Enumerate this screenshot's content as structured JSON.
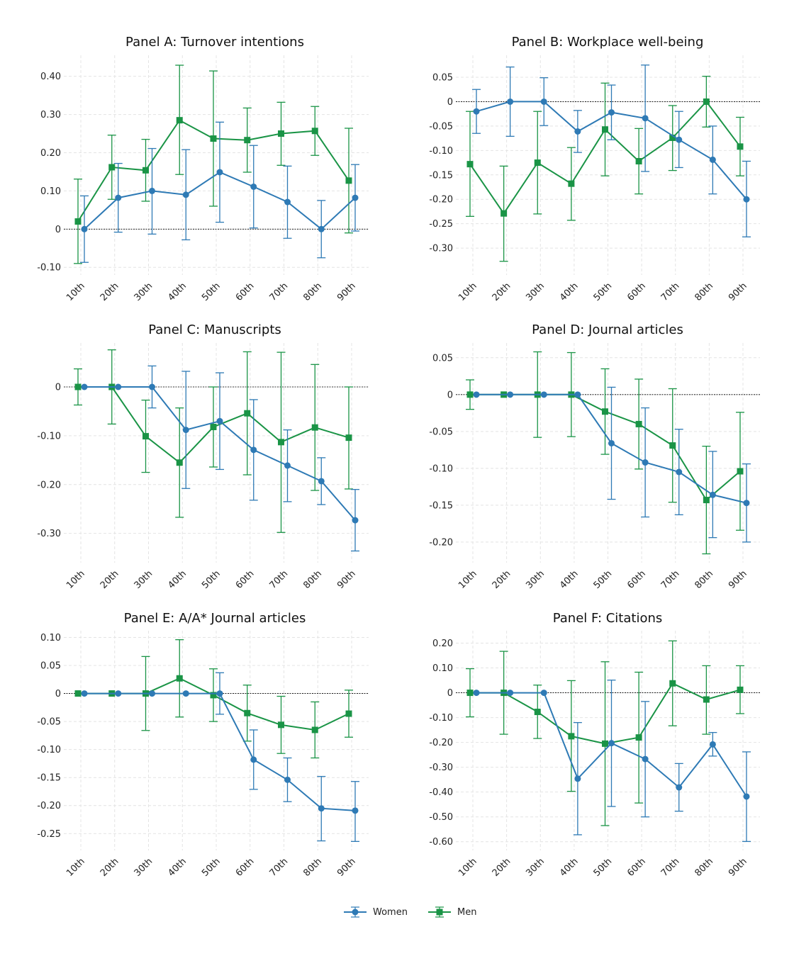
{
  "chart_data": [
    {
      "type": "line",
      "title": "Panel A: Turnover intentions",
      "categories": [
        "10th",
        "20th",
        "30th",
        "40th",
        "50th",
        "60th",
        "70th",
        "80th",
        "90th"
      ],
      "ylim": [
        -0.12,
        0.455
      ],
      "yticks": [
        -0.1,
        0.0,
        0.1,
        0.2,
        0.3,
        0.4
      ],
      "ytick_labels": [
        "-0.10",
        "0",
        "0.10",
        "0.20",
        "0.30",
        "0.40"
      ],
      "grid": true,
      "series": [
        {
          "name": "Women",
          "values": [
            0.0,
            0.082,
            0.1,
            0.09,
            0.149,
            0.111,
            0.071,
            0.0,
            0.082
          ],
          "err_low": [
            -0.087,
            -0.008,
            -0.013,
            -0.028,
            0.018,
            0.003,
            -0.024,
            -0.075,
            -0.005
          ],
          "err_high": [
            0.087,
            0.172,
            0.211,
            0.208,
            0.28,
            0.219,
            0.165,
            0.075,
            0.169
          ]
        },
        {
          "name": "Men",
          "values": [
            0.02,
            0.162,
            0.154,
            0.285,
            0.237,
            0.233,
            0.25,
            0.257,
            0.127
          ],
          "err_low": [
            -0.09,
            0.078,
            0.073,
            0.143,
            0.06,
            0.149,
            0.167,
            0.193,
            -0.01
          ],
          "err_high": [
            0.131,
            0.246,
            0.235,
            0.429,
            0.414,
            0.317,
            0.332,
            0.321,
            0.264
          ]
        }
      ]
    },
    {
      "type": "line",
      "title": "Panel B: Workplace well-being",
      "categories": [
        "10th",
        "20th",
        "30th",
        "40th",
        "50th",
        "60th",
        "70th",
        "80th",
        "90th"
      ],
      "ylim": [
        -0.355,
        0.095
      ],
      "yticks": [
        -0.3,
        -0.25,
        -0.2,
        -0.15,
        -0.1,
        -0.05,
        0.0,
        0.05
      ],
      "ytick_labels": [
        "-0.30",
        "-0.25",
        "-0.20",
        "-0.15",
        "-0.10",
        "-0.05",
        "0",
        "0.05"
      ],
      "grid": true,
      "series": [
        {
          "name": "Women",
          "values": [
            -0.02,
            0.0,
            0.0,
            -0.061,
            -0.022,
            -0.034,
            -0.078,
            -0.119,
            -0.2
          ],
          "err_low": [
            -0.065,
            -0.071,
            -0.049,
            -0.104,
            -0.078,
            -0.143,
            -0.135,
            -0.189,
            -0.277
          ],
          "err_high": [
            0.025,
            0.071,
            0.049,
            -0.018,
            0.034,
            0.075,
            -0.02,
            -0.05,
            -0.122
          ]
        },
        {
          "name": "Men",
          "values": [
            -0.128,
            -0.229,
            -0.125,
            -0.168,
            -0.057,
            -0.122,
            -0.074,
            0.0,
            -0.092
          ],
          "err_low": [
            -0.235,
            -0.327,
            -0.23,
            -0.243,
            -0.152,
            -0.189,
            -0.141,
            -0.052,
            -0.152
          ],
          "err_high": [
            -0.02,
            -0.132,
            -0.02,
            -0.094,
            0.038,
            -0.055,
            -0.008,
            0.052,
            -0.032
          ]
        }
      ]
    },
    {
      "type": "line",
      "title": "Panel C: Manuscripts",
      "categories": [
        "10th",
        "20th",
        "30th",
        "40th",
        "50th",
        "60th",
        "70th",
        "80th",
        "90th"
      ],
      "ylim": [
        -0.36,
        0.09
      ],
      "yticks": [
        -0.3,
        -0.2,
        -0.1,
        0.0
      ],
      "ytick_labels": [
        "-0.30",
        "-0.20",
        "-0.10",
        "0"
      ],
      "grid": true,
      "series": [
        {
          "name": "Women",
          "values": [
            0.0,
            0.0,
            0.0,
            -0.088,
            -0.07,
            -0.129,
            -0.161,
            -0.193,
            -0.273
          ],
          "err_low": [
            0.0,
            0.0,
            -0.043,
            -0.208,
            -0.169,
            -0.232,
            -0.235,
            -0.241,
            -0.336
          ],
          "err_high": [
            0.0,
            0.0,
            0.043,
            0.032,
            0.029,
            -0.026,
            -0.088,
            -0.145,
            -0.21
          ]
        },
        {
          "name": "Men",
          "values": [
            0.0,
            0.0,
            -0.101,
            -0.155,
            -0.082,
            -0.054,
            -0.113,
            -0.083,
            -0.104
          ],
          "err_low": [
            -0.037,
            -0.076,
            -0.175,
            -0.267,
            -0.164,
            -0.18,
            -0.298,
            -0.212,
            -0.209
          ],
          "err_high": [
            0.037,
            0.076,
            -0.027,
            -0.043,
            0.0,
            0.072,
            0.071,
            0.046,
            0.0
          ]
        }
      ]
    },
    {
      "type": "line",
      "title": "Panel D: Journal articles",
      "categories": [
        "10th",
        "20th",
        "30th",
        "40th",
        "50th",
        "60th",
        "70th",
        "80th",
        "90th"
      ],
      "ylim": [
        -0.228,
        0.07
      ],
      "yticks": [
        -0.2,
        -0.15,
        -0.1,
        -0.05,
        0.0,
        0.05
      ],
      "ytick_labels": [
        "-0.20",
        "-0.15",
        "-0.10",
        "-0.05",
        "0",
        "0.05"
      ],
      "grid": true,
      "series": [
        {
          "name": "Women",
          "values": [
            0.0,
            0.0,
            0.0,
            0.0,
            -0.066,
            -0.092,
            -0.105,
            -0.136,
            -0.147
          ],
          "err_low": [
            0.0,
            0.0,
            0.0,
            0.0,
            -0.142,
            -0.166,
            -0.163,
            -0.194,
            -0.2
          ],
          "err_high": [
            0.0,
            0.0,
            0.0,
            0.0,
            0.01,
            -0.018,
            -0.047,
            -0.077,
            -0.094
          ]
        },
        {
          "name": "Men",
          "values": [
            0.0,
            0.0,
            0.0,
            0.0,
            -0.023,
            -0.04,
            -0.069,
            -0.143,
            -0.104
          ],
          "err_low": [
            -0.02,
            0.0,
            -0.058,
            -0.057,
            -0.081,
            -0.101,
            -0.146,
            -0.216,
            -0.184
          ],
          "err_high": [
            0.02,
            0.0,
            0.058,
            0.057,
            0.035,
            0.021,
            0.008,
            -0.07,
            -0.024
          ]
        }
      ]
    },
    {
      "type": "line",
      "title": "Panel E: A/A* Journal articles",
      "categories": [
        "10th",
        "20th",
        "30th",
        "40th",
        "50th",
        "60th",
        "70th",
        "80th",
        "90th"
      ],
      "ylim": [
        -0.28,
        0.112
      ],
      "yticks": [
        -0.25,
        -0.2,
        -0.15,
        -0.1,
        -0.05,
        0.0,
        0.05,
        0.1
      ],
      "ytick_labels": [
        "-0.25",
        "-0.20",
        "-0.15",
        "-0.10",
        "-0.05",
        "0",
        "0.05",
        "0.10"
      ],
      "grid": true,
      "series": [
        {
          "name": "Women",
          "values": [
            0.0,
            0.0,
            0.0,
            0.0,
            0.0,
            -0.118,
            -0.154,
            -0.205,
            -0.209
          ],
          "err_low": [
            0.0,
            0.0,
            0.0,
            0.0,
            -0.037,
            -0.171,
            -0.193,
            -0.263,
            -0.264
          ],
          "err_high": [
            0.0,
            0.0,
            0.0,
            0.0,
            0.037,
            -0.065,
            -0.115,
            -0.148,
            -0.157
          ]
        },
        {
          "name": "Men",
          "values": [
            0.0,
            0.0,
            0.0,
            0.027,
            -0.003,
            -0.035,
            -0.056,
            -0.065,
            -0.036
          ],
          "err_low": [
            0.0,
            0.0,
            -0.066,
            -0.042,
            -0.05,
            -0.085,
            -0.107,
            -0.115,
            -0.078
          ],
          "err_high": [
            0.0,
            0.0,
            0.066,
            0.096,
            0.044,
            0.015,
            -0.005,
            -0.015,
            0.006
          ]
        }
      ]
    },
    {
      "type": "line",
      "title": "Panel F: Citations",
      "categories": [
        "10th",
        "20th",
        "30th",
        "40th",
        "50th",
        "60th",
        "70th",
        "80th",
        "90th"
      ],
      "ylim": [
        -0.635,
        0.25
      ],
      "yticks": [
        -0.6,
        -0.5,
        -0.4,
        -0.3,
        -0.2,
        -0.1,
        0.0,
        0.1,
        0.2
      ],
      "ytick_labels": [
        "-0.60",
        "-0.50",
        "-0.40",
        "-0.30",
        "-0.20",
        "-0.10",
        "0",
        "0.10",
        "0.20"
      ],
      "grid": true,
      "series": [
        {
          "name": "Women",
          "values": [
            0.0,
            0.0,
            0.0,
            -0.346,
            -0.203,
            -0.267,
            -0.381,
            -0.208,
            -0.418
          ],
          "err_low": [
            0.0,
            0.0,
            0.0,
            -0.572,
            -0.458,
            -0.5,
            -0.477,
            -0.255,
            -0.599
          ],
          "err_high": [
            0.0,
            0.0,
            0.0,
            -0.12,
            0.051,
            -0.035,
            -0.285,
            -0.16,
            -0.238
          ]
        },
        {
          "name": "Men",
          "values": [
            0.0,
            0.0,
            -0.077,
            -0.175,
            -0.205,
            -0.18,
            0.038,
            -0.027,
            0.012
          ],
          "err_low": [
            -0.097,
            -0.167,
            -0.184,
            -0.397,
            -0.535,
            -0.444,
            -0.133,
            -0.167,
            -0.084
          ],
          "err_high": [
            0.097,
            0.167,
            0.031,
            0.049,
            0.125,
            0.083,
            0.209,
            0.109,
            0.109
          ]
        }
      ]
    }
  ],
  "legend": {
    "placement": "bottom-center",
    "items": [
      {
        "label": "Women",
        "color": "#2e7ab5",
        "marker": "circle"
      },
      {
        "label": "Men",
        "color": "#1a9446",
        "marker": "square"
      }
    ]
  }
}
